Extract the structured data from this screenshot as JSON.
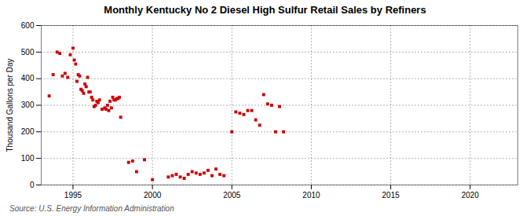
{
  "chart_data": {
    "type": "scatter",
    "title": "Monthly Kentucky No 2 Diesel High Sulfur Retail Sales by Refiners",
    "ylabel": "Thousand Gallons per Day",
    "annotations": [
      "Source: U.S. Energy Information Administration"
    ],
    "color": "#cc0000",
    "marker": "square",
    "grid": true,
    "xlim": [
      1993.0,
      2023.0
    ],
    "ylim": [
      0,
      600
    ],
    "xticks": [
      1995,
      2000,
      2005,
      2010,
      2015,
      2020
    ],
    "yticks": [
      0,
      100,
      200,
      300,
      400,
      500,
      600
    ],
    "x": [
      1993.5,
      1993.75,
      1994.0,
      1994.17,
      1994.33,
      1994.5,
      1994.67,
      1994.83,
      1995.0,
      1995.08,
      1995.17,
      1995.25,
      1995.33,
      1995.42,
      1995.5,
      1995.58,
      1995.67,
      1995.75,
      1995.83,
      1995.92,
      1996.0,
      1996.08,
      1996.17,
      1996.25,
      1996.33,
      1996.42,
      1996.5,
      1996.58,
      1996.67,
      1996.83,
      1997.0,
      1997.08,
      1997.17,
      1997.25,
      1997.33,
      1997.42,
      1997.5,
      1997.58,
      1997.67,
      1997.75,
      1997.83,
      1997.92,
      1998.0,
      1998.5,
      1998.75,
      1999.0,
      1999.5,
      2000.0,
      2001.0,
      2001.25,
      2001.5,
      2001.75,
      2002.0,
      2002.25,
      2002.5,
      2002.75,
      2003.0,
      2003.25,
      2003.5,
      2003.75,
      2004.0,
      2004.25,
      2004.5,
      2005.0,
      2005.25,
      2005.5,
      2005.75,
      2006.0,
      2006.25,
      2006.5,
      2006.75,
      2007.0,
      2007.25,
      2007.5,
      2007.75,
      2008.0,
      2008.25
    ],
    "values": [
      335,
      415,
      500,
      495,
      410,
      420,
      405,
      490,
      515,
      470,
      455,
      390,
      415,
      410,
      360,
      355,
      345,
      380,
      370,
      405,
      350,
      350,
      330,
      320,
      295,
      300,
      315,
      310,
      320,
      285,
      290,
      285,
      300,
      280,
      315,
      290,
      330,
      320,
      320,
      325,
      325,
      330,
      255,
      85,
      90,
      50,
      95,
      20,
      30,
      35,
      40,
      30,
      25,
      40,
      50,
      45,
      40,
      45,
      55,
      35,
      60,
      40,
      35,
      200,
      275,
      270,
      265,
      280,
      280,
      245,
      225,
      340,
      305,
      300,
      200,
      295,
      200
    ]
  }
}
